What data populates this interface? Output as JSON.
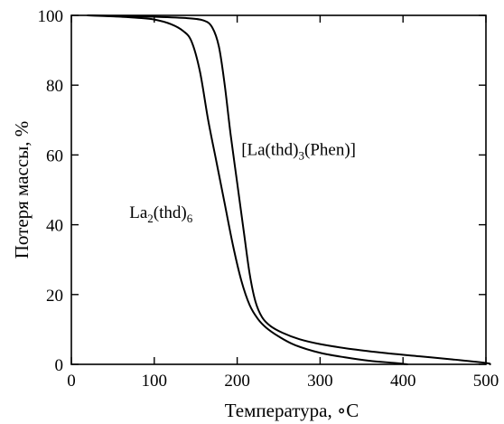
{
  "chart_data": {
    "type": "line",
    "title": "",
    "xlabel": "Температура, ∘C",
    "ylabel": "Потеря массы, %",
    "xlim": [
      0,
      500
    ],
    "ylim": [
      0,
      100
    ],
    "xticks": [
      "0",
      "100",
      "200",
      "300",
      "400",
      "500"
    ],
    "yticks": [
      "0",
      "20",
      "40",
      "60",
      "80",
      "100"
    ],
    "grid": false,
    "legend": "none",
    "series": [
      {
        "id": "la2thd6",
        "x": [
          20,
          40,
          60,
          80,
          100,
          120,
          135,
          145,
          155,
          165,
          175,
          185,
          195,
          205,
          215,
          225,
          235,
          250,
          270,
          300,
          330,
          360,
          390,
          405
        ],
        "y": [
          100,
          99.8,
          99.6,
          99.3,
          98.8,
          97.5,
          95.5,
          92.5,
          84,
          70,
          58,
          46,
          34,
          24,
          17,
          13,
          10.5,
          8,
          5.5,
          3.3,
          2,
          1,
          0.4,
          0
        ]
      },
      {
        "id": "la_thd3_phen",
        "x": [
          20,
          60,
          100,
          140,
          160,
          170,
          178,
          185,
          192,
          200,
          208,
          215,
          222,
          230,
          240,
          255,
          275,
          300,
          340,
          380,
          420,
          460,
          500,
          505
        ],
        "y": [
          100,
          99.8,
          99.6,
          99.2,
          98.5,
          96.5,
          91,
          80,
          66,
          52,
          38,
          26,
          18,
          13.5,
          11,
          9,
          7.2,
          5.8,
          4.3,
          3.2,
          2.3,
          1.4,
          0.4,
          0
        ]
      }
    ],
    "annotations": [
      {
        "series": "la_thd3_phen",
        "parts": [
          {
            "text": "[La(thd)",
            "sub": false
          },
          {
            "text": "3",
            "sub": true
          },
          {
            "text": "(Phen)]",
            "sub": false
          }
        ],
        "x": 205,
        "y": 60
      },
      {
        "series": "la2thd6",
        "parts": [
          {
            "text": "La",
            "sub": false
          },
          {
            "text": "2",
            "sub": true
          },
          {
            "text": "(thd)",
            "sub": false
          },
          {
            "text": "6",
            "sub": true
          }
        ],
        "x": 70,
        "y": 42
      }
    ]
  }
}
